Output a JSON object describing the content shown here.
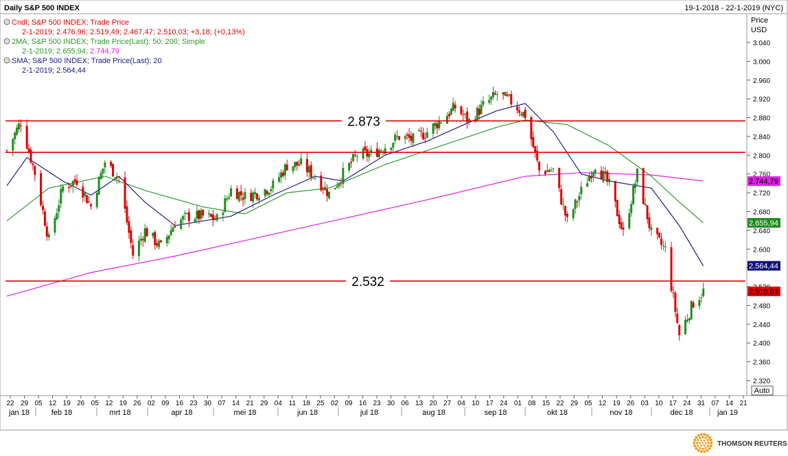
{
  "window": {
    "title": "Daily S&P 500 INDEX",
    "date_range": "19-1-2018 - 22-1-2019 (NYC)"
  },
  "legend": {
    "items": [
      {
        "line1": "Cndl; S&P 500 INDEX; Trade Price",
        "line2": "2-1-2019; 2.476,96; 2.519,49; 2.467,47; 2.510,03; +3,18; (+0,13%)",
        "color": "#e00000"
      },
      {
        "line1": "2MA; S&P 500 INDEX; Trade Price(Last);  50; 200; Simple",
        "line2a": "2-1-2019; 2.655,94; ",
        "line2b": "2.744,79",
        "color": "#2a9a2a",
        "color2": "#e020e0"
      },
      {
        "line1": "SMA; S&P 500 INDEX; Trade Price(Last);  20",
        "line2": "2-1-2019; 2.564,44",
        "color": "#1a1a80"
      }
    ]
  },
  "y_axis": {
    "title_line1": "Price",
    "title_line2": "USD",
    "ticks": [
      "3.040",
      "3.000",
      "2.960",
      "2.920",
      "2.880",
      "2.840",
      "2.800",
      "2.760",
      "2.720",
      "2.680",
      "2.640",
      "2.600",
      "2.560",
      "2.520",
      "2.480",
      "2.440",
      "2.400",
      "2.360",
      "2.320"
    ],
    "auto_label": "Auto",
    "badges": [
      {
        "label": "2.744,79",
        "value": 2744.79,
        "bg": "#e020e0",
        "fg": "#000000"
      },
      {
        "label": "2.655,94",
        "value": 2655.94,
        "bg": "#1e8c1e",
        "fg": "#ffffff"
      },
      {
        "label": "2.564,44",
        "value": 2564.44,
        "bg": "#12127a",
        "fg": "#ffffff"
      },
      {
        "label": "2.510,03",
        "value": 2510.03,
        "bg": "#e00000",
        "fg": "#000000"
      }
    ]
  },
  "x_axis": {
    "day_labels": [
      "22",
      "29",
      "05",
      "12",
      "19",
      "26",
      "05",
      "12",
      "19",
      "26",
      "02",
      "09",
      "16",
      "23",
      "30",
      "07",
      "14",
      "21",
      "29",
      "04",
      "11",
      "18",
      "25",
      "02",
      "09",
      "16",
      "23",
      "30",
      "06",
      "13",
      "20",
      "27",
      "04",
      "10",
      "17",
      "24",
      "01",
      "08",
      "15",
      "22",
      "29",
      "05",
      "12",
      "19",
      "26",
      "03",
      "10",
      "17",
      "24",
      "31",
      "07",
      "14",
      "21"
    ],
    "months": [
      "jan 18",
      "feb 18",
      "mrt 18",
      "apr 18",
      "mei 18",
      "jun 18",
      "jul 18",
      "aug 18",
      "sep 18",
      "okt 18",
      "nov 18",
      "dec 18",
      "jan 19"
    ]
  },
  "footer": {
    "brand": "THOMSON REUTERS"
  },
  "chart_data": {
    "type": "candlestick",
    "title": "Daily S&P 500 INDEX",
    "ylabel": "Price USD",
    "ylim": [
      2310,
      3060
    ],
    "grid": false,
    "x_range": [
      "2018-01-19",
      "2019-01-22"
    ],
    "last_candle": {
      "date": "2-1-2019",
      "open": 2476.96,
      "high": 2519.49,
      "low": 2467.47,
      "close": 2510.03,
      "change": 3.18,
      "change_pct": 0.13
    },
    "horizontal_levels": [
      {
        "value": 2873,
        "label": "2.873",
        "color": "#e00000"
      },
      {
        "value": 2806,
        "label": "",
        "color": "#e00000"
      },
      {
        "value": 2532,
        "label": "2.532",
        "color": "#e00000"
      }
    ],
    "series": [
      {
        "name": "Cndl; S&P 500 INDEX; Trade Price",
        "type": "candle",
        "color": "#e00000",
        "points": [
          [
            "2018-01-19",
            2810
          ],
          [
            "2018-01-26",
            2872
          ],
          [
            "2018-02-02",
            2762
          ],
          [
            "2018-02-09",
            2619
          ],
          [
            "2018-02-16",
            2732
          ],
          [
            "2018-02-23",
            2747
          ],
          [
            "2018-03-02",
            2691
          ],
          [
            "2018-03-09",
            2786
          ],
          [
            "2018-03-16",
            2752
          ],
          [
            "2018-03-23",
            2588
          ],
          [
            "2018-03-29",
            2640
          ],
          [
            "2018-04-06",
            2604
          ],
          [
            "2018-04-13",
            2656
          ],
          [
            "2018-04-20",
            2670
          ],
          [
            "2018-04-27",
            2670
          ],
          [
            "2018-05-04",
            2663
          ],
          [
            "2018-05-11",
            2727
          ],
          [
            "2018-05-18",
            2712
          ],
          [
            "2018-05-25",
            2721
          ],
          [
            "2018-06-01",
            2735
          ],
          [
            "2018-06-08",
            2779
          ],
          [
            "2018-06-15",
            2780
          ],
          [
            "2018-06-22",
            2755
          ],
          [
            "2018-06-29",
            2718
          ],
          [
            "2018-07-06",
            2760
          ],
          [
            "2018-07-13",
            2801
          ],
          [
            "2018-07-20",
            2802
          ],
          [
            "2018-07-27",
            2819
          ],
          [
            "2018-08-03",
            2840
          ],
          [
            "2018-08-10",
            2833
          ],
          [
            "2018-08-17",
            2850
          ],
          [
            "2018-08-24",
            2875
          ],
          [
            "2018-08-31",
            2902
          ],
          [
            "2018-09-07",
            2872
          ],
          [
            "2018-09-14",
            2905
          ],
          [
            "2018-09-21",
            2930
          ],
          [
            "2018-09-28",
            2914
          ],
          [
            "2018-10-05",
            2885
          ],
          [
            "2018-10-12",
            2767
          ],
          [
            "2018-10-19",
            2768
          ],
          [
            "2018-10-26",
            2658
          ],
          [
            "2018-11-02",
            2723
          ],
          [
            "2018-11-09",
            2781
          ],
          [
            "2018-11-16",
            2736
          ],
          [
            "2018-11-23",
            2633
          ],
          [
            "2018-11-30",
            2760
          ],
          [
            "2018-12-07",
            2633
          ],
          [
            "2018-12-14",
            2599
          ],
          [
            "2018-12-21",
            2417
          ],
          [
            "2018-12-28",
            2486
          ],
          [
            "2019-01-02",
            2510
          ]
        ]
      },
      {
        "name": "2MA 50",
        "type": "line",
        "color": "#2a9a2a",
        "points": [
          [
            "2018-01-19",
            2660
          ],
          [
            "2018-02-09",
            2730
          ],
          [
            "2018-03-09",
            2755
          ],
          [
            "2018-03-29",
            2725
          ],
          [
            "2018-04-27",
            2690
          ],
          [
            "2018-05-18",
            2675
          ],
          [
            "2018-06-08",
            2720
          ],
          [
            "2018-06-29",
            2730
          ],
          [
            "2018-07-27",
            2780
          ],
          [
            "2018-08-24",
            2820
          ],
          [
            "2018-09-21",
            2860
          ],
          [
            "2018-10-05",
            2875
          ],
          [
            "2018-10-26",
            2865
          ],
          [
            "2018-11-16",
            2820
          ],
          [
            "2018-12-07",
            2755
          ],
          [
            "2018-12-21",
            2700
          ],
          [
            "2019-01-02",
            2656
          ]
        ]
      },
      {
        "name": "2MA 200",
        "type": "line",
        "color": "#e020e0",
        "points": [
          [
            "2018-01-19",
            2500
          ],
          [
            "2018-03-02",
            2550
          ],
          [
            "2018-04-13",
            2585
          ],
          [
            "2018-05-25",
            2625
          ],
          [
            "2018-07-06",
            2665
          ],
          [
            "2018-08-17",
            2705
          ],
          [
            "2018-10-05",
            2755
          ],
          [
            "2018-11-02",
            2763
          ],
          [
            "2018-12-07",
            2758
          ],
          [
            "2019-01-02",
            2745
          ]
        ]
      },
      {
        "name": "SMA 20",
        "type": "line",
        "color": "#1a1a80",
        "points": [
          [
            "2018-01-19",
            2735
          ],
          [
            "2018-01-29",
            2795
          ],
          [
            "2018-02-16",
            2745
          ],
          [
            "2018-03-02",
            2715
          ],
          [
            "2018-03-16",
            2755
          ],
          [
            "2018-03-29",
            2700
          ],
          [
            "2018-04-13",
            2650
          ],
          [
            "2018-04-27",
            2660
          ],
          [
            "2018-05-11",
            2670
          ],
          [
            "2018-06-01",
            2715
          ],
          [
            "2018-06-22",
            2755
          ],
          [
            "2018-07-06",
            2745
          ],
          [
            "2018-07-27",
            2800
          ],
          [
            "2018-08-17",
            2830
          ],
          [
            "2018-09-07",
            2870
          ],
          [
            "2018-09-21",
            2895
          ],
          [
            "2018-10-05",
            2910
          ],
          [
            "2018-10-19",
            2850
          ],
          [
            "2018-11-02",
            2760
          ],
          [
            "2018-11-16",
            2745
          ],
          [
            "2018-12-07",
            2730
          ],
          [
            "2018-12-21",
            2650
          ],
          [
            "2019-01-02",
            2564
          ]
        ]
      }
    ]
  }
}
